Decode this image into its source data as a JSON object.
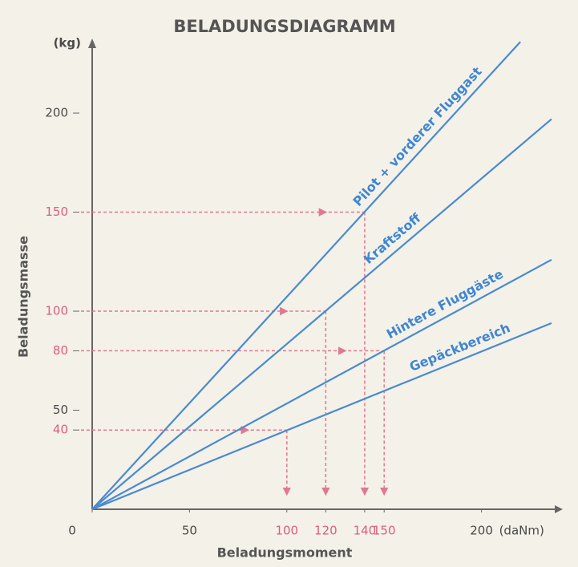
{
  "chart_data": {
    "type": "line",
    "title": "BELADUNGSDIAGRAMM",
    "x_label": "Beladungsmoment",
    "y_label": "Beladungsmasse",
    "x_unit": "(daNm)",
    "y_unit": "(kg)",
    "xlim": [
      0,
      236
    ],
    "ylim": [
      0,
      232
    ],
    "xticks": [
      0,
      50,
      100,
      120,
      140,
      150,
      200
    ],
    "yticks": [
      40,
      50,
      80,
      100,
      150,
      200
    ],
    "series": [
      {
        "name": "Pilot + vorderer Fluggast",
        "color": "#4a8ad0",
        "x": [
          0,
          220
        ],
        "values": [
          0,
          236
        ]
      },
      {
        "name": "Kraftstoff",
        "color": "#4a8ad0",
        "x": [
          0,
          236
        ],
        "values": [
          0,
          197
        ]
      },
      {
        "name": "Hintere Fluggäste",
        "color": "#4a8ad0",
        "x": [
          0,
          236
        ],
        "values": [
          0,
          126
        ]
      },
      {
        "name": "Gepäckbereich",
        "color": "#4a8ad0",
        "x": [
          0,
          236
        ],
        "values": [
          0,
          94
        ]
      }
    ],
    "readings": [
      {
        "mass": 150,
        "moment": 140
      },
      {
        "mass": 100,
        "moment": 120
      },
      {
        "mass": 80,
        "moment": 150
      },
      {
        "mass": 40,
        "moment": 100
      }
    ],
    "reading_color": "#e07890"
  }
}
